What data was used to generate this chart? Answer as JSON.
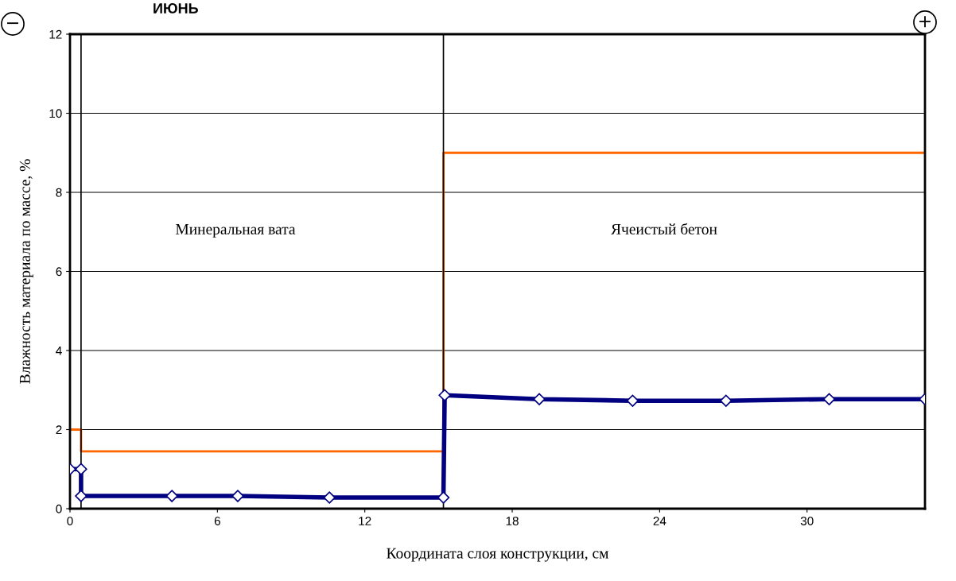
{
  "chart_data": {
    "type": "line",
    "title": "ИЮНЬ",
    "xlabel": "Координата слоя конструкции, см",
    "ylabel": "Влажность материала по массе, %",
    "xlim": [
      0,
      34.8
    ],
    "xticks": [
      0,
      6,
      12,
      18,
      24,
      30
    ],
    "ylim": [
      0,
      12
    ],
    "yticks": [
      0,
      2,
      4,
      6,
      8,
      10,
      12
    ],
    "grid": "y",
    "series": [
      {
        "type": "step",
        "color": "#ff6600",
        "marker": "none",
        "x": [
          0,
          0.45,
          15.2,
          34.8
        ],
        "values": [
          2.0,
          1.45,
          9.0,
          9.0
        ]
      },
      {
        "color": "#000080",
        "marker": "diamond",
        "x": [
          0,
          0.45,
          0.45,
          4.15,
          6.83,
          10.56,
          15.2,
          15.25,
          19.1,
          22.9,
          26.7,
          30.9,
          34.8
        ],
        "values": [
          1.0,
          1.0,
          0.32,
          0.32,
          0.32,
          0.28,
          0.28,
          2.87,
          2.77,
          2.73,
          2.73,
          2.77,
          2.77
        ]
      }
    ],
    "ref_lines": [
      {
        "axis": "x",
        "value": 0.45,
        "color": "#000000"
      },
      {
        "axis": "x",
        "value": 15.2,
        "color": "#000000"
      }
    ],
    "annotations": [
      "Минеральная вата",
      "Ячеистый бетон",
      "−",
      "+"
    ]
  }
}
